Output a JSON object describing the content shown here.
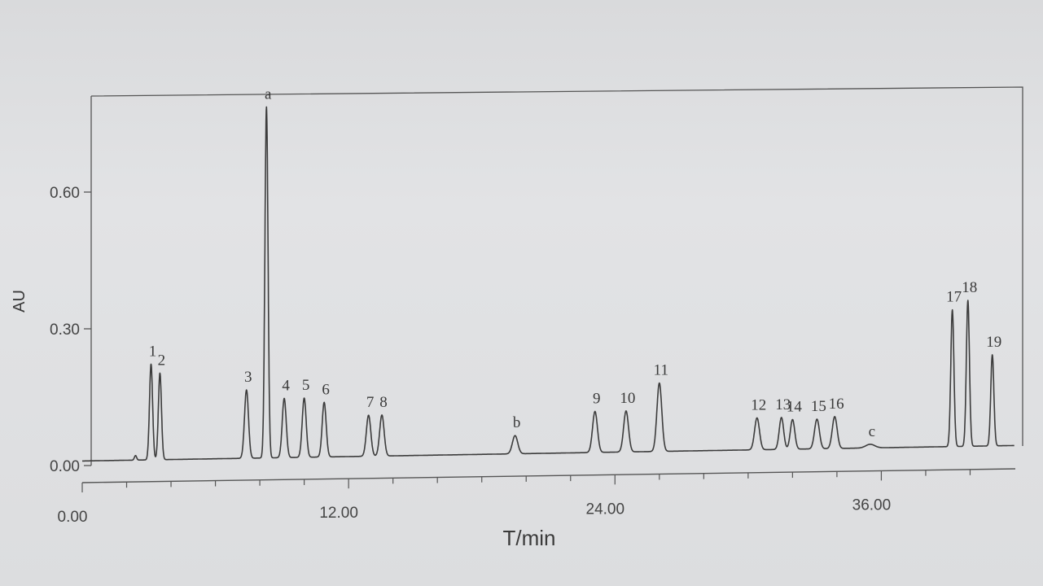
{
  "chart_data": {
    "type": "line",
    "xlabel": "T/min",
    "ylabel": "AU",
    "xlim": [
      0,
      42
    ],
    "ylim": [
      0,
      0.8
    ],
    "x_ticks": [
      "0.00",
      "12.00",
      "24.00",
      "36.00"
    ],
    "x_tick_values": [
      0,
      12,
      24,
      36
    ],
    "y_ticks": [
      "0.00",
      "0.30",
      "0.60"
    ],
    "y_tick_values": [
      0,
      0.3,
      0.6
    ],
    "grid": false,
    "baseline": 0.01,
    "peaks": [
      {
        "label": "",
        "x": 2.4,
        "height": 0.01,
        "width": 0.05
      },
      {
        "label": "1",
        "x": 3.1,
        "height": 0.21,
        "width": 0.07
      },
      {
        "label": "2",
        "x": 3.5,
        "height": 0.19,
        "width": 0.07
      },
      {
        "label": "3",
        "x": 7.4,
        "height": 0.15,
        "width": 0.09
      },
      {
        "label": "a",
        "x": 8.3,
        "height": 0.77,
        "width": 0.07
      },
      {
        "label": "4",
        "x": 9.1,
        "height": 0.13,
        "width": 0.09
      },
      {
        "label": "5",
        "x": 10.0,
        "height": 0.13,
        "width": 0.09
      },
      {
        "label": "6",
        "x": 10.9,
        "height": 0.12,
        "width": 0.09
      },
      {
        "label": "7",
        "x": 12.9,
        "height": 0.09,
        "width": 0.1
      },
      {
        "label": "8",
        "x": 13.5,
        "height": 0.09,
        "width": 0.1
      },
      {
        "label": "b",
        "x": 19.5,
        "height": 0.04,
        "width": 0.12
      },
      {
        "label": "9",
        "x": 23.1,
        "height": 0.09,
        "width": 0.11
      },
      {
        "label": "10",
        "x": 24.5,
        "height": 0.09,
        "width": 0.11
      },
      {
        "label": "11",
        "x": 26.0,
        "height": 0.15,
        "width": 0.11
      },
      {
        "label": "12",
        "x": 30.4,
        "height": 0.07,
        "width": 0.11
      },
      {
        "label": "13",
        "x": 31.5,
        "height": 0.07,
        "width": 0.1
      },
      {
        "label": "14",
        "x": 32.0,
        "height": 0.065,
        "width": 0.1
      },
      {
        "label": "15",
        "x": 33.1,
        "height": 0.065,
        "width": 0.11
      },
      {
        "label": "16",
        "x": 33.9,
        "height": 0.07,
        "width": 0.11
      },
      {
        "label": "c",
        "x": 35.5,
        "height": 0.008,
        "width": 0.2
      },
      {
        "label": "17",
        "x": 39.2,
        "height": 0.3,
        "width": 0.07
      },
      {
        "label": "18",
        "x": 39.9,
        "height": 0.32,
        "width": 0.07
      },
      {
        "label": "19",
        "x": 41.0,
        "height": 0.2,
        "width": 0.07
      }
    ]
  }
}
